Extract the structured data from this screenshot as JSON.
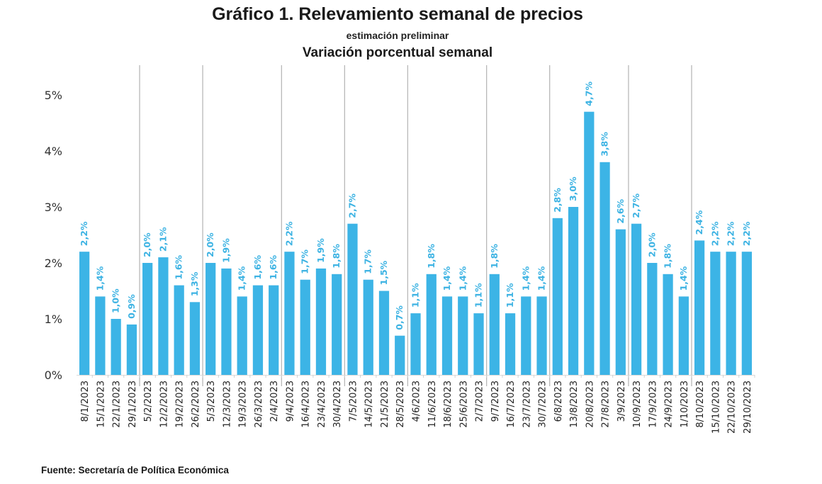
{
  "chart_data": {
    "type": "bar",
    "title": "Gráfico 1. Relevamiento semanal de precios",
    "subtitle": "estimación preliminar",
    "subtitle2": "Variación porcentual semanal",
    "source": "Fuente: Secretaría de Política Económica",
    "xlabel": "",
    "ylabel": "",
    "ylim": [
      0,
      5
    ],
    "yticks": [
      0,
      1,
      2,
      3,
      4,
      5
    ],
    "ytick_labels": [
      "0%",
      "1%",
      "2%",
      "3%",
      "4%",
      "5%"
    ],
    "grid": false,
    "month_separators": true,
    "bar_color": "#3cb4e6",
    "label_color": "#3db3e3",
    "categories": [
      "8/1/2023",
      "15/1/2023",
      "22/1/2023",
      "29/1/2023",
      "5/2/2023",
      "12/2/2023",
      "19/2/2023",
      "26/2/2023",
      "5/3/2023",
      "12/3/2023",
      "19/3/2023",
      "26/3/2023",
      "2/4/2023",
      "9/4/2023",
      "16/4/2023",
      "23/4/2023",
      "30/4/2023",
      "7/5/2023",
      "14/5/2023",
      "21/5/2023",
      "28/5/2023",
      "4/6/2023",
      "11/6/2023",
      "18/6/2023",
      "25/6/2023",
      "2/7/2023",
      "9/7/2023",
      "16/7/2023",
      "23/7/2023",
      "30/7/2023",
      "6/8/2023",
      "13/8/2023",
      "20/8/2023",
      "27/8/2023",
      "3/9/2023",
      "10/9/2023",
      "17/9/2023",
      "24/9/2023",
      "1/10/2023",
      "8/10/2023",
      "15/10/2023",
      "22/10/2023",
      "29/10/2023"
    ],
    "values": [
      2.2,
      1.4,
      1.0,
      0.9,
      2.0,
      2.1,
      1.6,
      1.3,
      2.0,
      1.9,
      1.4,
      1.6,
      1.6,
      2.2,
      1.7,
      1.9,
      1.8,
      2.7,
      1.7,
      1.5,
      0.7,
      1.1,
      1.8,
      1.4,
      1.4,
      1.1,
      1.8,
      1.1,
      1.4,
      1.4,
      2.8,
      3.0,
      4.7,
      3.8,
      2.6,
      2.7,
      2.0,
      1.8,
      1.4,
      2.4,
      2.2,
      2.2,
      2.2
    ],
    "data_labels": [
      "2,2%",
      "1,4%",
      "1,0%",
      "0,9%",
      "2,0%",
      "2,1%",
      "1,6%",
      "1,3%",
      "2,0%",
      "1,9%",
      "1,4%",
      "1,6%",
      "1,6%",
      "2,2%",
      "1,7%",
      "1,9%",
      "1,8%",
      "2,7%",
      "1,7%",
      "1,5%",
      "0,7%",
      "1,1%",
      "1,8%",
      "1,4%",
      "1,4%",
      "1,1%",
      "1,8%",
      "1,1%",
      "1,4%",
      "1,4%",
      "2,8%",
      "3,0%",
      "4,7%",
      "3,8%",
      "2,6%",
      "2,7%",
      "2,0%",
      "1,8%",
      "1,4%",
      "2,4%",
      "2,2%",
      "2,2%",
      "2,2%"
    ],
    "separator_after_index": [
      3,
      7,
      12,
      16,
      20,
      25,
      29,
      34,
      38
    ]
  }
}
